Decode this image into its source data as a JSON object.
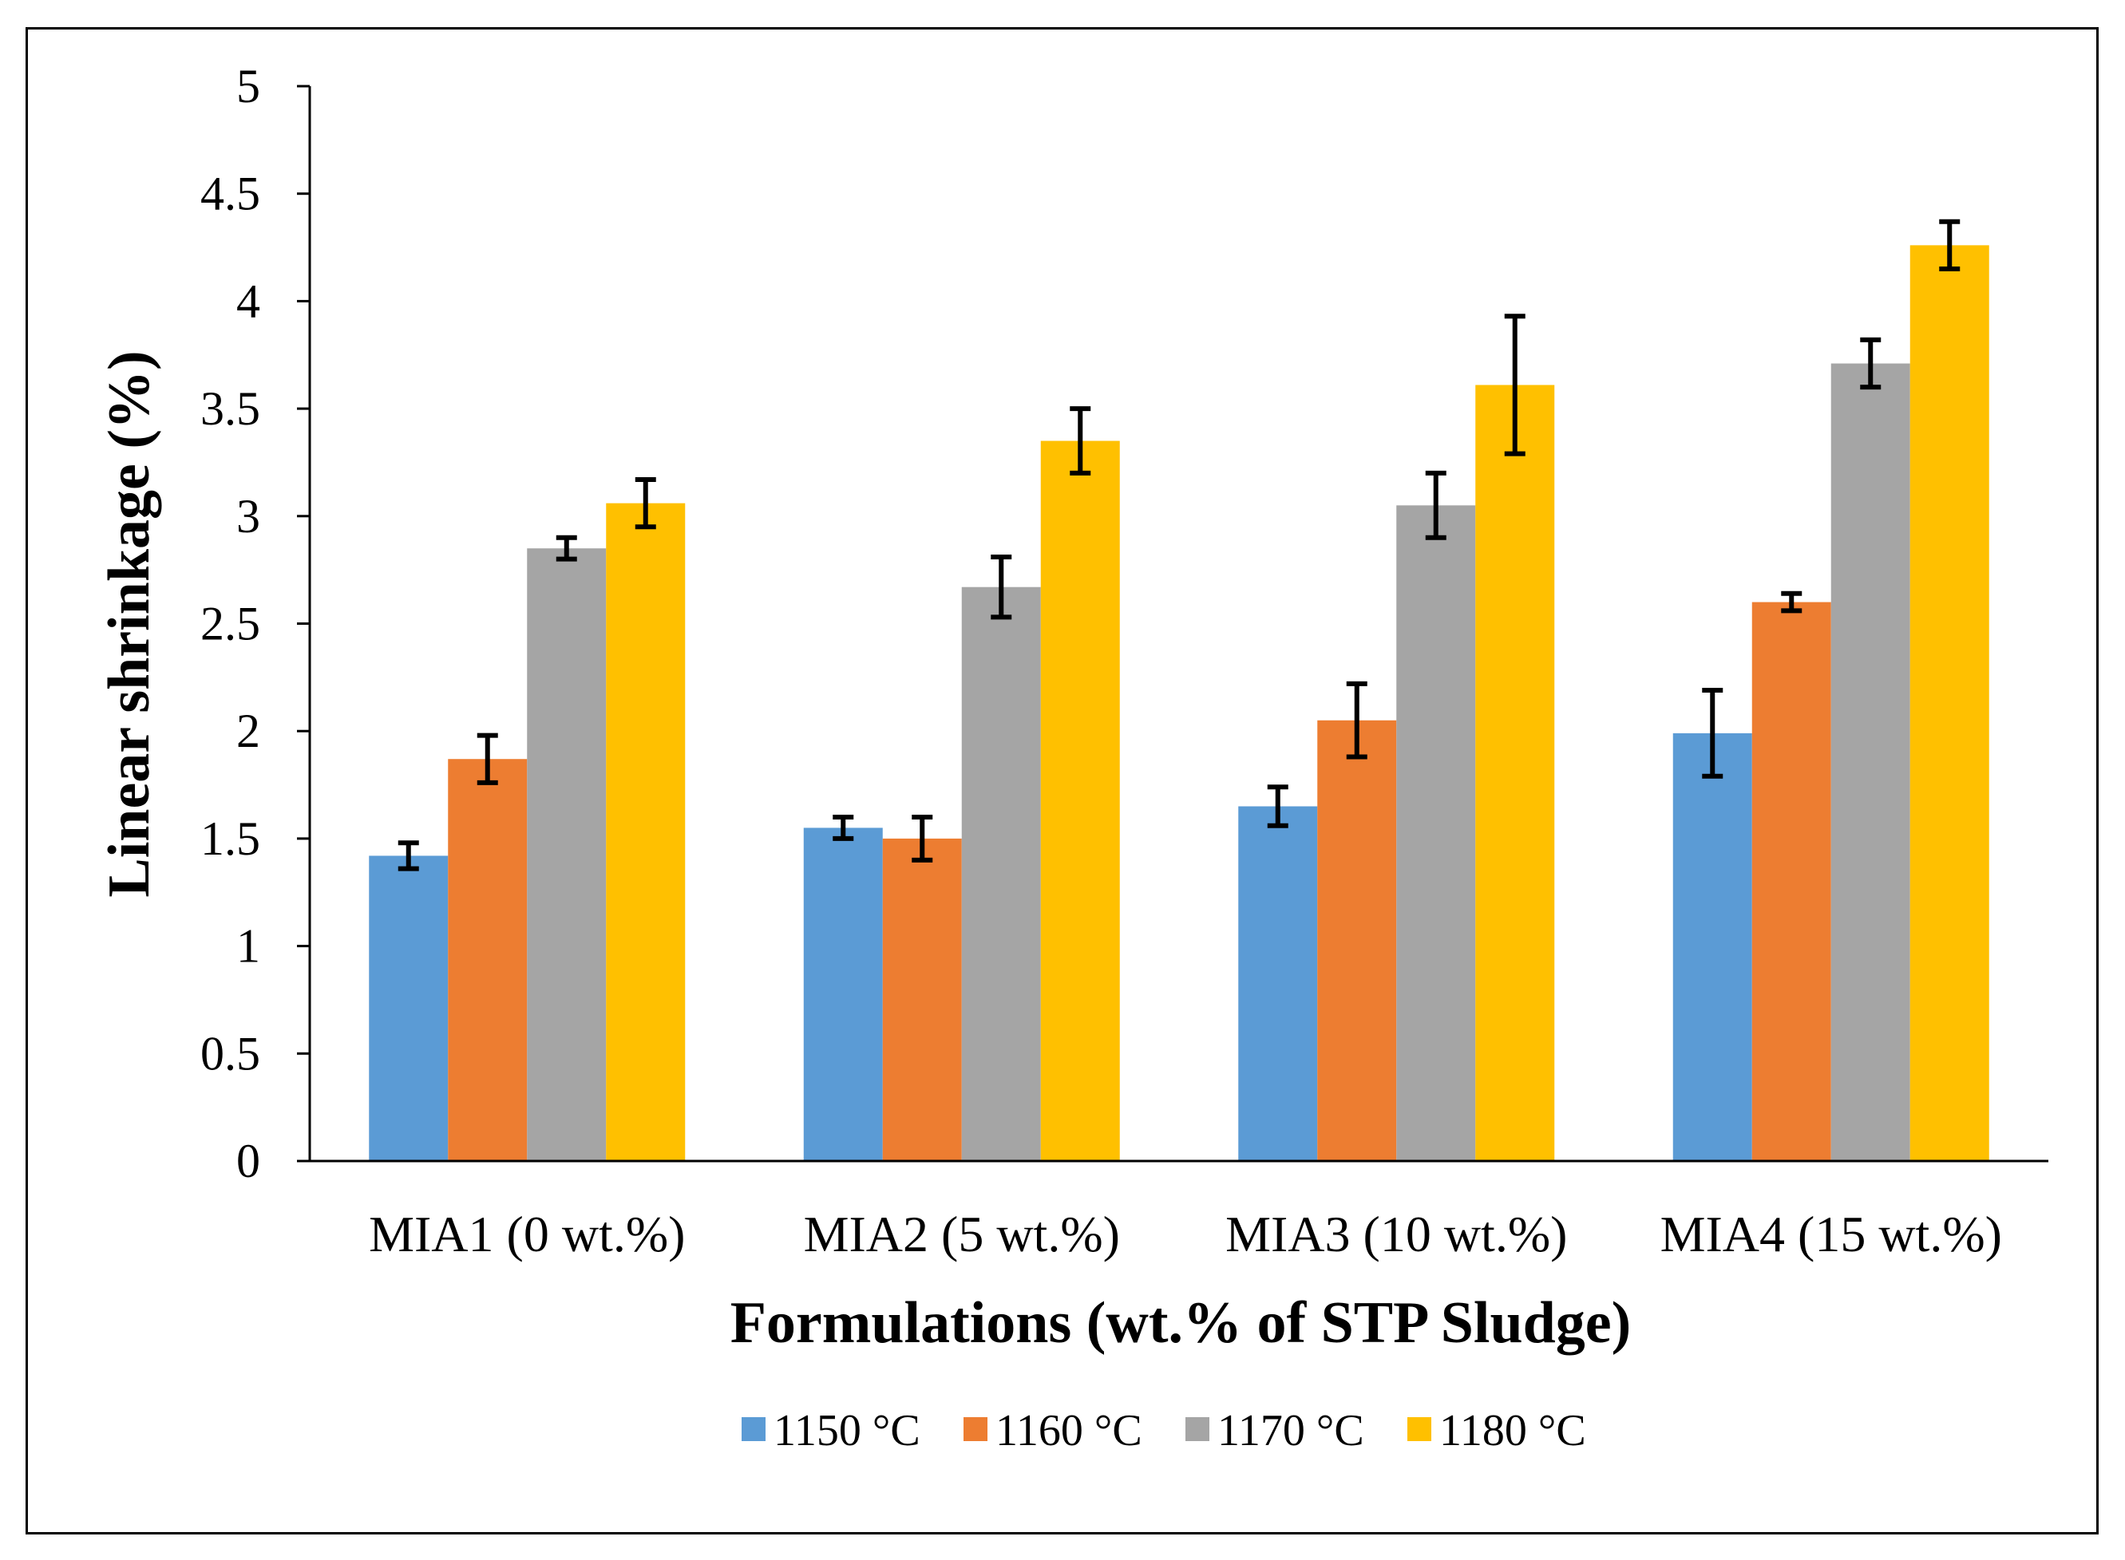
{
  "chart_data": {
    "type": "bar",
    "title": "",
    "xlabel": "Formulations (wt.% of STP Sludge)",
    "ylabel": "Linear shrinkage (%)",
    "ylim": [
      0,
      5
    ],
    "yticks": [
      "0",
      "0.5",
      "1",
      "1.5",
      "2",
      "2.5",
      "3",
      "3.5",
      "4",
      "4.5",
      "5"
    ],
    "categories": [
      "MIA1 (0 wt.%)",
      "MIA2 (5 wt.%)",
      "MIA3 (10 wt.%)",
      "MIA4 (15 wt.%)"
    ],
    "series": [
      {
        "name": "1150 °C",
        "color": "#5B9BD5",
        "values": [
          1.42,
          1.55,
          1.65,
          1.99
        ],
        "errors": [
          0.06,
          0.05,
          0.09,
          0.2
        ]
      },
      {
        "name": "1160 °C",
        "color": "#ED7D31",
        "values": [
          1.87,
          1.5,
          2.05,
          2.6
        ],
        "errors": [
          0.11,
          0.1,
          0.17,
          0.04
        ]
      },
      {
        "name": "1170 °C",
        "color": "#A5A5A5",
        "values": [
          2.85,
          2.67,
          3.05,
          3.71
        ],
        "errors": [
          0.05,
          0.14,
          0.15,
          0.11
        ]
      },
      {
        "name": "1180 °C",
        "color": "#FFC000",
        "values": [
          3.06,
          3.35,
          3.61,
          4.26
        ],
        "errors": [
          0.11,
          0.15,
          0.32,
          0.11
        ]
      }
    ],
    "legend": "bottom",
    "grid": false
  }
}
